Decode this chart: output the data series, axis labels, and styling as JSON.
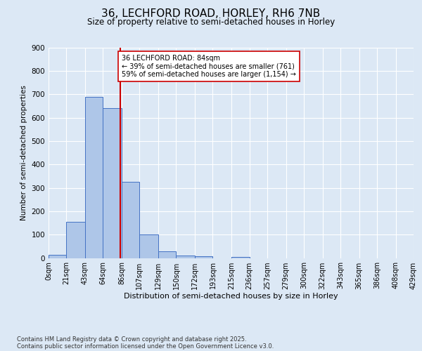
{
  "title": "36, LECHFORD ROAD, HORLEY, RH6 7NB",
  "subtitle": "Size of property relative to semi-detached houses in Horley",
  "xlabel": "Distribution of semi-detached houses by size in Horley",
  "ylabel": "Number of semi-detached properties",
  "bin_edges": [
    0,
    21,
    43,
    64,
    86,
    107,
    129,
    150,
    172,
    193,
    215,
    236,
    257,
    279,
    300,
    322,
    343,
    365,
    386,
    408,
    429
  ],
  "bar_heights": [
    15,
    155,
    690,
    640,
    325,
    100,
    30,
    10,
    8,
    0,
    5,
    0,
    0,
    0,
    0,
    0,
    0,
    0,
    0,
    0
  ],
  "bar_color": "#aec6e8",
  "bar_edge_color": "#4472c4",
  "property_size": 84,
  "vline_color": "#cc0000",
  "annotation_text": "36 LECHFORD ROAD: 84sqm\n← 39% of semi-detached houses are smaller (761)\n59% of semi-detached houses are larger (1,154) →",
  "annotation_box_color": "#ffffff",
  "annotation_box_edge": "#cc0000",
  "background_color": "#dce8f5",
  "plot_bg_color": "#dce8f5",
  "ylim": [
    0,
    900
  ],
  "yticks": [
    0,
    100,
    200,
    300,
    400,
    500,
    600,
    700,
    800,
    900
  ],
  "tick_labels": [
    "0sqm",
    "21sqm",
    "43sqm",
    "64sqm",
    "86sqm",
    "107sqm",
    "129sqm",
    "150sqm",
    "172sqm",
    "193sqm",
    "215sqm",
    "236sqm",
    "257sqm",
    "279sqm",
    "300sqm",
    "322sqm",
    "343sqm",
    "365sqm",
    "386sqm",
    "408sqm",
    "429sqm"
  ],
  "footer_line1": "Contains HM Land Registry data © Crown copyright and database right 2025.",
  "footer_line2": "Contains public sector information licensed under the Open Government Licence v3.0."
}
